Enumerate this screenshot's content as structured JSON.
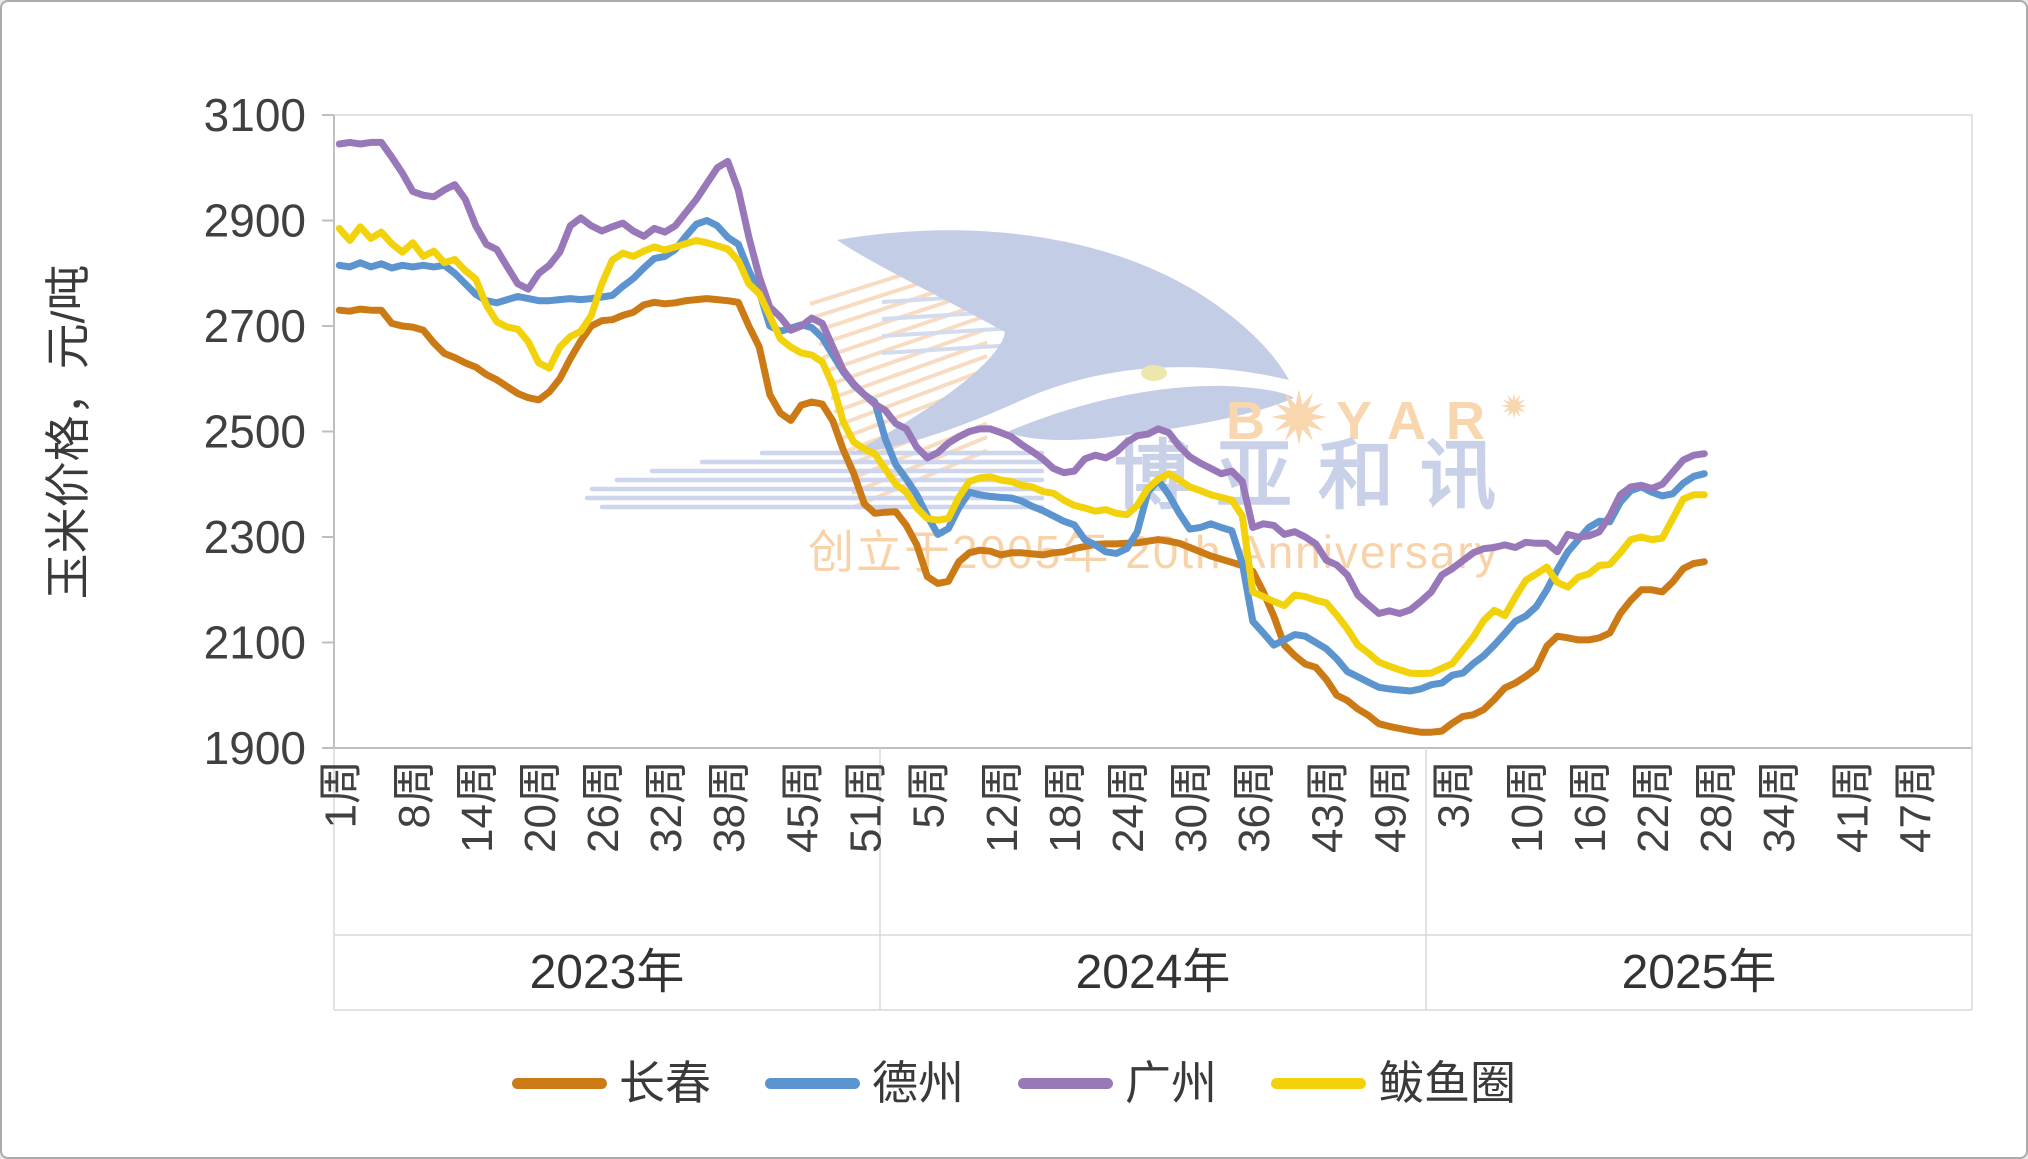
{
  "watermark": {
    "brand_en_parts": [
      "B",
      "YAR"
    ],
    "brand_cn": "博亚和讯",
    "tagline": "创立于2005年 20th Anniversary",
    "bird_color": "#c4cde6",
    "text_orange": "#f8d6ae",
    "text_blue": "#c9d1e9"
  },
  "legend": [
    {
      "id": "changchun",
      "label": "长春",
      "color": "#cb7a15"
    },
    {
      "id": "dezhou",
      "label": "德州",
      "color": "#5b94ce"
    },
    {
      "id": "guangzhou",
      "label": "广州",
      "color": "#9878b8"
    },
    {
      "id": "bayuquan",
      "label": "鲅鱼圈",
      "color": "#f2d30b"
    }
  ],
  "chart_data": {
    "type": "line",
    "title": "",
    "xlabel": "",
    "ylabel": "玉米价格，元/吨",
    "ylim": [
      1900,
      3100
    ],
    "yticks": [
      1900,
      2100,
      2300,
      2500,
      2700,
      2900,
      3100
    ],
    "grid": false,
    "legend_position": "bottom",
    "week_suffix": "周",
    "year_suffix": "",
    "years": [
      {
        "label": "2023年",
        "weeks": 52,
        "tick_weeks": [
          1,
          8,
          14,
          20,
          26,
          32,
          38,
          45,
          51
        ]
      },
      {
        "label": "2024年",
        "weeks": 52,
        "tick_weeks": [
          5,
          12,
          18,
          24,
          30,
          36,
          43,
          49
        ]
      },
      {
        "label": "2025年",
        "weeks": 52,
        "tick_weeks": [
          3,
          10,
          16,
          22,
          28,
          34,
          41,
          47
        ]
      }
    ],
    "series": [
      {
        "id": "changchun",
        "name": "长春",
        "color": "#cb7a15",
        "values": [
          2730,
          2728,
          2732,
          2730,
          2730,
          2705,
          2700,
          2698,
          2692,
          2668,
          2648,
          2640,
          2630,
          2622,
          2608,
          2598,
          2585,
          2572,
          2564,
          2560,
          2575,
          2600,
          2638,
          2672,
          2700,
          2710,
          2712,
          2720,
          2726,
          2740,
          2745,
          2742,
          2744,
          2748,
          2750,
          2752,
          2750,
          2748,
          2745,
          2700,
          2660,
          2570,
          2535,
          2521,
          2550,
          2556,
          2552,
          2520,
          2465,
          2420,
          2363,
          2345,
          2347,
          2348,
          2322,
          2285,
          2225,
          2212,
          2216,
          2253,
          2270,
          2275,
          2273,
          2266,
          2270,
          2270,
          2268,
          2266,
          2270,
          2272,
          2278,
          2282,
          2286,
          2287,
          2287,
          2288,
          2289,
          2292,
          2295,
          2292,
          2288,
          2280,
          2272,
          2264,
          2258,
          2252,
          2246,
          2235,
          2196,
          2150,
          2095,
          2075,
          2059,
          2053,
          2030,
          2000,
          1990,
          1974,
          1962,
          1946,
          1941,
          1937,
          1933,
          1930,
          1930,
          1932,
          1947,
          1960,
          1963,
          1973,
          1992,
          2014,
          2023,
          2036,
          2051,
          2093,
          2112,
          2109,
          2105,
          2105,
          2109,
          2118,
          2155,
          2180,
          2200,
          2200,
          2196,
          2215,
          2240,
          2250,
          2253
        ]
      },
      {
        "id": "dezhou",
        "name": "德州",
        "color": "#5b94ce",
        "values": [
          2815,
          2812,
          2820,
          2812,
          2818,
          2810,
          2815,
          2812,
          2815,
          2812,
          2815,
          2800,
          2780,
          2760,
          2748,
          2744,
          2750,
          2756,
          2752,
          2748,
          2748,
          2750,
          2752,
          2750,
          2752,
          2755,
          2758,
          2775,
          2790,
          2810,
          2828,
          2832,
          2845,
          2870,
          2893,
          2900,
          2890,
          2868,
          2855,
          2805,
          2765,
          2700,
          2690,
          2696,
          2702,
          2697,
          2678,
          2645,
          2613,
          2588,
          2570,
          2556,
          2486,
          2437,
          2410,
          2380,
          2340,
          2305,
          2316,
          2355,
          2385,
          2380,
          2377,
          2375,
          2374,
          2368,
          2358,
          2350,
          2340,
          2330,
          2323,
          2295,
          2285,
          2272,
          2269,
          2278,
          2310,
          2385,
          2408,
          2380,
          2345,
          2315,
          2318,
          2325,
          2318,
          2312,
          2250,
          2140,
          2118,
          2095,
          2105,
          2115,
          2112,
          2100,
          2088,
          2069,
          2045,
          2035,
          2025,
          2015,
          2012,
          2010,
          2008,
          2012,
          2020,
          2023,
          2038,
          2042,
          2060,
          2075,
          2095,
          2117,
          2140,
          2150,
          2168,
          2200,
          2238,
          2272,
          2295,
          2318,
          2330,
          2329,
          2366,
          2388,
          2395,
          2385,
          2378,
          2382,
          2402,
          2415,
          2420
        ]
      },
      {
        "id": "guangzhou",
        "name": "广州",
        "color": "#9878b8",
        "values": [
          3045,
          3048,
          3045,
          3048,
          3048,
          3020,
          2990,
          2955,
          2948,
          2945,
          2958,
          2968,
          2940,
          2890,
          2855,
          2845,
          2812,
          2780,
          2770,
          2800,
          2815,
          2840,
          2890,
          2905,
          2890,
          2880,
          2888,
          2895,
          2880,
          2870,
          2885,
          2878,
          2890,
          2915,
          2940,
          2970,
          3000,
          3012,
          2958,
          2869,
          2793,
          2736,
          2717,
          2692,
          2700,
          2715,
          2705,
          2660,
          2616,
          2590,
          2570,
          2552,
          2540,
          2515,
          2505,
          2470,
          2450,
          2460,
          2478,
          2490,
          2500,
          2505,
          2505,
          2498,
          2490,
          2475,
          2462,
          2448,
          2430,
          2422,
          2425,
          2448,
          2455,
          2450,
          2461,
          2480,
          2492,
          2495,
          2505,
          2498,
          2472,
          2452,
          2440,
          2430,
          2420,
          2425,
          2405,
          2318,
          2325,
          2322,
          2305,
          2310,
          2300,
          2287,
          2256,
          2247,
          2228,
          2190,
          2172,
          2155,
          2160,
          2155,
          2162,
          2178,
          2196,
          2228,
          2240,
          2255,
          2270,
          2278,
          2280,
          2285,
          2280,
          2290,
          2288,
          2288,
          2272,
          2305,
          2300,
          2302,
          2310,
          2340,
          2380,
          2395,
          2398,
          2392,
          2400,
          2423,
          2446,
          2455,
          2458
        ]
      },
      {
        "id": "bayuquan",
        "name": "鲅鱼圈",
        "color": "#f2d30b",
        "values": [
          2885,
          2862,
          2888,
          2866,
          2878,
          2856,
          2840,
          2858,
          2832,
          2842,
          2820,
          2826,
          2805,
          2789,
          2740,
          2708,
          2698,
          2694,
          2670,
          2630,
          2620,
          2660,
          2680,
          2690,
          2720,
          2780,
          2825,
          2838,
          2832,
          2842,
          2850,
          2844,
          2850,
          2856,
          2862,
          2858,
          2852,
          2846,
          2824,
          2780,
          2761,
          2719,
          2676,
          2660,
          2649,
          2645,
          2632,
          2588,
          2518,
          2480,
          2467,
          2458,
          2429,
          2400,
          2385,
          2355,
          2335,
          2332,
          2335,
          2375,
          2405,
          2412,
          2414,
          2408,
          2405,
          2398,
          2395,
          2386,
          2383,
          2370,
          2360,
          2355,
          2349,
          2352,
          2345,
          2342,
          2360,
          2392,
          2410,
          2420,
          2408,
          2395,
          2388,
          2380,
          2375,
          2370,
          2340,
          2196,
          2187,
          2178,
          2170,
          2190,
          2187,
          2180,
          2175,
          2152,
          2126,
          2095,
          2080,
          2063,
          2055,
          2048,
          2042,
          2041,
          2042,
          2051,
          2060,
          2085,
          2110,
          2142,
          2161,
          2151,
          2186,
          2218,
          2230,
          2243,
          2214,
          2205,
          2224,
          2230,
          2246,
          2248,
          2270,
          2295,
          2300,
          2295,
          2298,
          2335,
          2372,
          2380,
          2380
        ]
      }
    ]
  }
}
